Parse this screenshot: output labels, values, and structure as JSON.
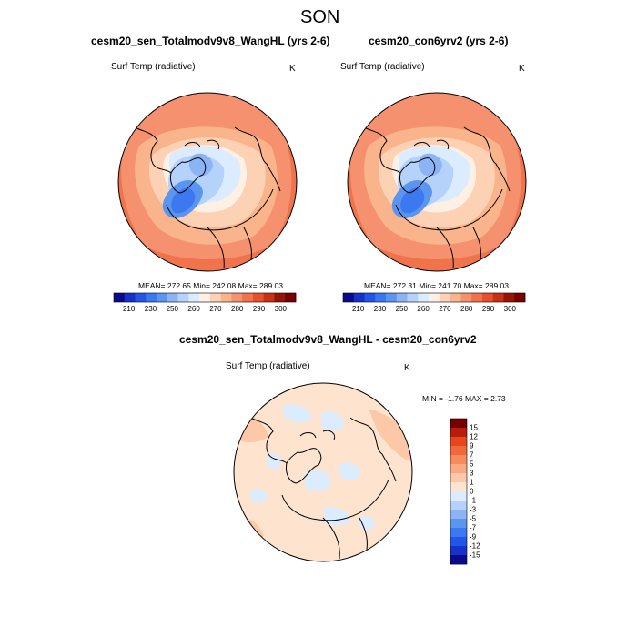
{
  "title": "SON",
  "panels": [
    {
      "title": "cesm20_sen_Totalmodv9v8_WangHL (yrs 2-6)",
      "variable": "Surf Temp (radiative)",
      "units": "K",
      "stats": "MEAN= 272.65  Min= 242.08  Max= 289.03"
    },
    {
      "title": "cesm20_con6yrv2 (yrs 2-6)",
      "variable": "Surf Temp (radiative)",
      "units": "K",
      "stats": "MEAN= 272.31  Min= 241.70  Max= 289.03"
    },
    {
      "title": "cesm20_sen_Totalmodv9v8_WangHL - cesm20_con6yrv2",
      "variable": "Surf Temp (radiative)",
      "units": "K",
      "stats": "MIN =  -1.76 MAX =   2.73"
    }
  ],
  "colorbar_abs": {
    "colors": [
      "#0a0a8c",
      "#1632c8",
      "#2355e6",
      "#3c78f0",
      "#5a96f0",
      "#8cb4f5",
      "#b4d2fa",
      "#dcecff",
      "#fff0e6",
      "#fdd2b4",
      "#fab48c",
      "#f5916e",
      "#f0734b",
      "#e6502d",
      "#c83214",
      "#961405",
      "#780000"
    ],
    "labels": [
      "210",
      "230",
      "250",
      "260",
      "270",
      "280",
      "290",
      "300"
    ]
  },
  "colorbar_diff": {
    "colors": [
      "#780000",
      "#b41e0a",
      "#e6461e",
      "#f0693c",
      "#f58c5f",
      "#f9aa82",
      "#fcc8a8",
      "#fee4cf",
      "#dcecff",
      "#b4d2fa",
      "#8cb4f5",
      "#5a96f0",
      "#3c78f0",
      "#2355e6",
      "#1632c8",
      "#0a0a8c"
    ],
    "labels": [
      "15",
      "12",
      "9",
      "7",
      "5",
      "3",
      "1",
      "0",
      "-1",
      "-3",
      "-5",
      "-7",
      "-9",
      "-12",
      "-15"
    ]
  }
}
